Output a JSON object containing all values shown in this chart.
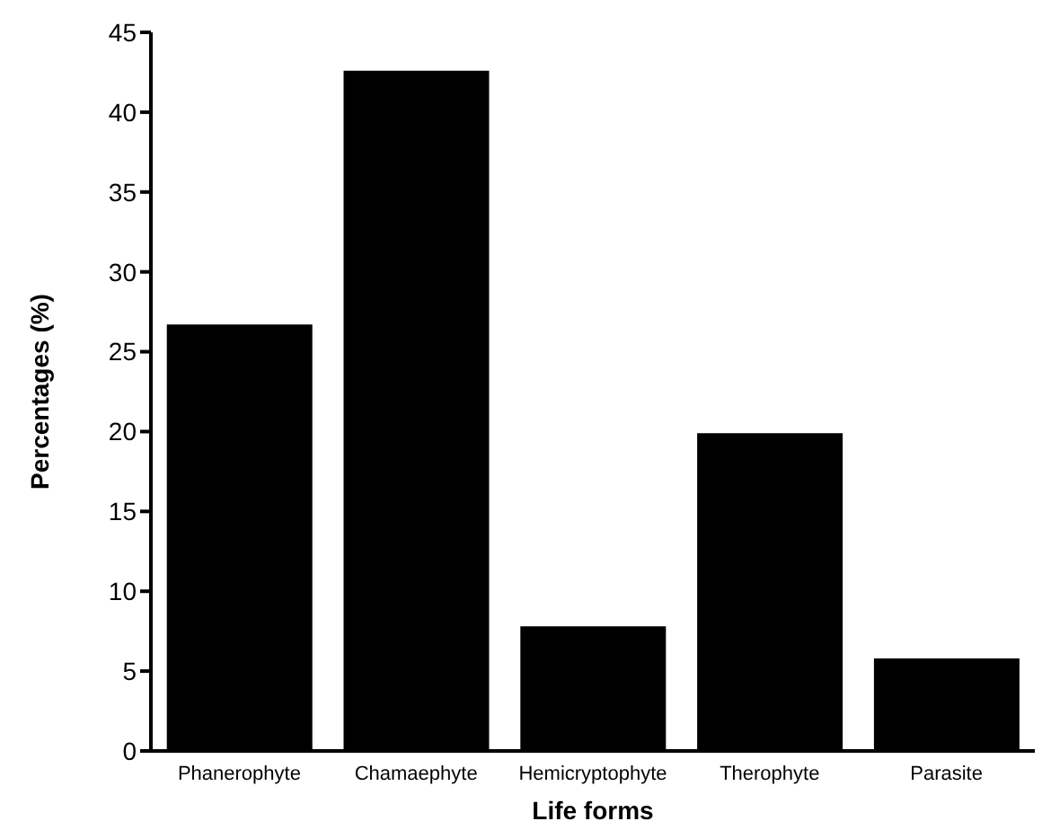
{
  "chart_data": {
    "type": "bar",
    "xlabel": "Life forms",
    "ylabel": "Percentages (%)",
    "categories": [
      "Phanerophyte",
      "Chamaephyte",
      "Hemicryptophyte",
      "Therophyte",
      "Parasite"
    ],
    "values": [
      26.7,
      42.6,
      7.8,
      19.9,
      5.8
    ],
    "color": "#000000",
    "ylim": [
      0,
      45
    ],
    "yticks": [
      0,
      5,
      10,
      15,
      20,
      25,
      30,
      35,
      40,
      45
    ],
    "grid": false,
    "legend": false
  }
}
